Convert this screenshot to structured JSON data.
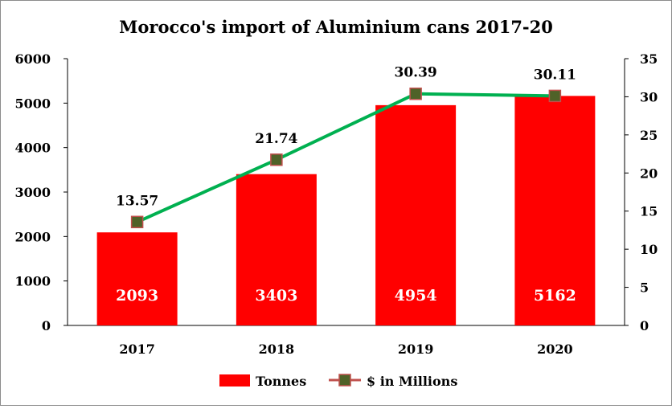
{
  "chart_data": {
    "type": "bar",
    "title": "Morocco's import of Aluminium cans 2017-20",
    "categories": [
      "2017",
      "2018",
      "2019",
      "2020"
    ],
    "series": [
      {
        "name": "Tonnes",
        "type": "bar",
        "axis": "left",
        "color": "#ff0000",
        "values": [
          2093,
          3403,
          4954,
          5162
        ]
      },
      {
        "name": "$ in Millions",
        "type": "line",
        "axis": "right",
        "color": "#00b050",
        "marker_fill": "#4f6228",
        "marker_edge": "#c0504d",
        "values": [
          13.57,
          21.74,
          30.39,
          30.11
        ]
      }
    ],
    "y_left": {
      "ylim": [
        0,
        6000
      ],
      "ticks": [
        "0",
        "1000",
        "2000",
        "3000",
        "4000",
        "5000",
        "6000"
      ]
    },
    "y_right": {
      "ylim": [
        0,
        35
      ],
      "ticks": [
        "0",
        "5",
        "10",
        "15",
        "20",
        "25",
        "30",
        "35"
      ]
    },
    "grid": false,
    "legend_position": "bottom"
  }
}
